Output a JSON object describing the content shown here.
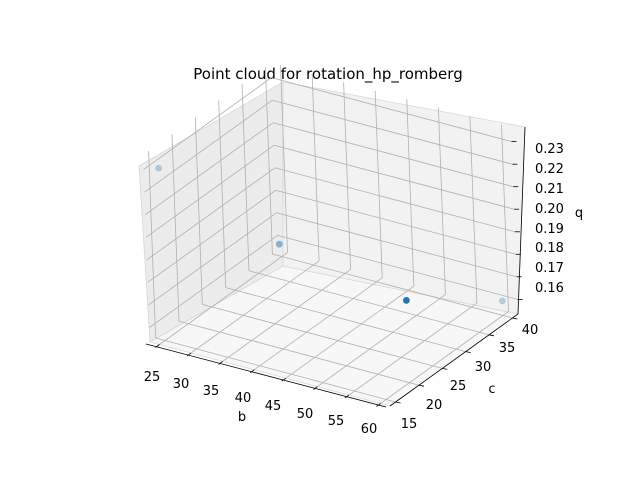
{
  "chart_data": {
    "type": "scatter",
    "title": "Point cloud for rotation_hp_romberg",
    "xlabel": "b",
    "ylabel": "c",
    "zlabel": "q",
    "x_ticks": [
      "25",
      "30",
      "35",
      "40",
      "45",
      "50",
      "55",
      "60"
    ],
    "y_ticks": [
      "15",
      "20",
      "25",
      "30",
      "35",
      "40"
    ],
    "z_ticks": [
      "0.16",
      "0.17",
      "0.18",
      "0.19",
      "0.20",
      "0.21",
      "0.22",
      "0.23"
    ],
    "xlim": [
      23.5,
      61.5
    ],
    "ylim": [
      13.8,
      41.2
    ],
    "zlim": [
      0.1535,
      0.2365
    ],
    "grid": true,
    "marker_color": "#1f77b4",
    "points": [
      {
        "b": 25,
        "c": 15,
        "q": 0.23
      },
      {
        "b": 40,
        "c": 20,
        "q": 0.2
      },
      {
        "b": 60,
        "c": 20,
        "q": 0.19
      },
      {
        "b": 60,
        "c": 40,
        "q": 0.16
      }
    ]
  }
}
